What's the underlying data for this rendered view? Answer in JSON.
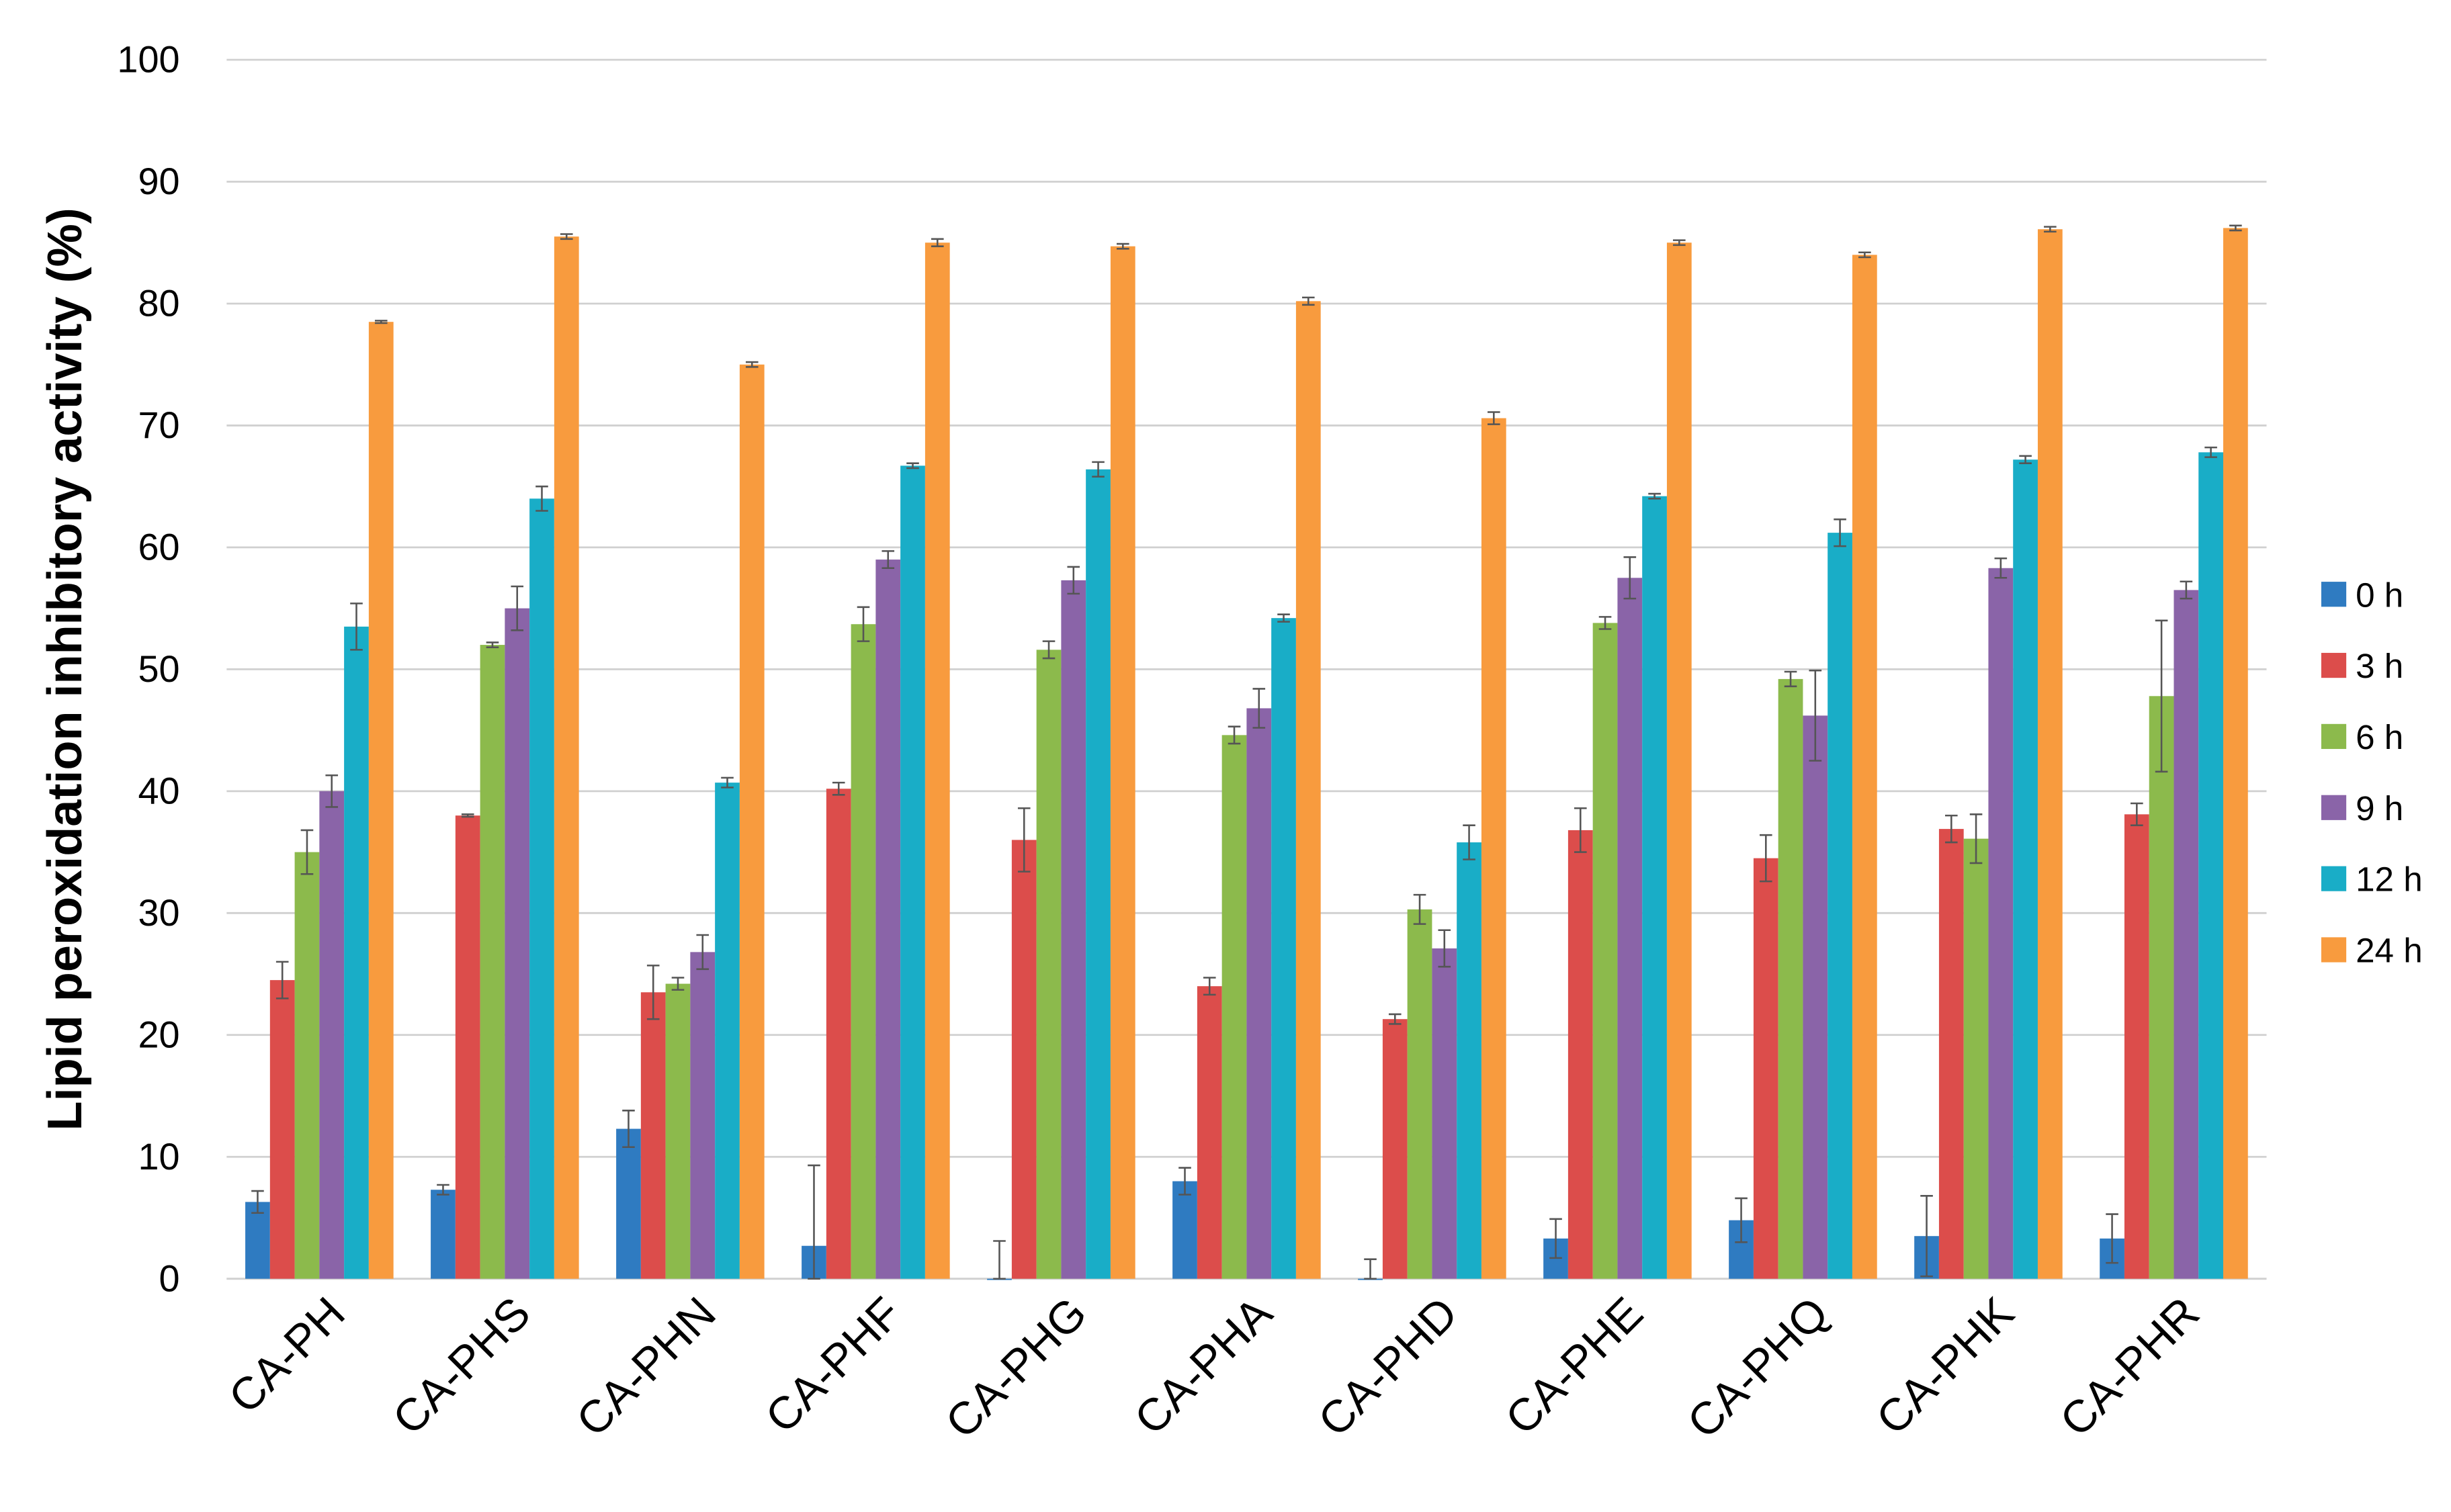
{
  "chart_data": {
    "type": "bar",
    "title": "",
    "xlabel": "",
    "ylabel": "Lipid peroxidation inhibitory activity (%)",
    "ylim": [
      0,
      100
    ],
    "yticks": [
      "0",
      "10",
      "20",
      "30",
      "40",
      "50",
      "60",
      "70",
      "80",
      "90",
      "100"
    ],
    "grid": true,
    "legend_position": "right",
    "categories": [
      "CA-PH",
      "CA-PHS",
      "CA-PHN",
      "CA-PHF",
      "CA-PHG",
      "CA-PHA",
      "CA-PHD",
      "CA-PHE",
      "CA-PHQ",
      "CA-PHK",
      "CA-PHR"
    ],
    "series": [
      {
        "name": "0 h",
        "color": "#2f7bc1",
        "values": [
          6.3,
          7.3,
          12.3,
          2.7,
          0,
          8.0,
          0,
          3.3,
          4.8,
          3.5,
          3.3
        ],
        "errors": [
          0.9,
          0.4,
          1.5,
          6.6,
          3.1,
          1.1,
          1.6,
          1.6,
          1.8,
          3.3,
          2.0
        ]
      },
      {
        "name": "3 h",
        "color": "#dc4d4b",
        "values": [
          24.5,
          38.0,
          23.5,
          40.2,
          36.0,
          24.0,
          21.3,
          36.8,
          34.5,
          36.9,
          38.1
        ],
        "errors": [
          1.5,
          0.1,
          2.2,
          0.5,
          2.6,
          0.7,
          0.4,
          1.8,
          1.9,
          1.1,
          0.9
        ]
      },
      {
        "name": "6 h",
        "color": "#8cba4c",
        "values": [
          35.0,
          52.0,
          24.2,
          53.7,
          51.6,
          44.6,
          30.3,
          53.8,
          49.2,
          36.1,
          47.8
        ],
        "errors": [
          1.8,
          0.2,
          0.5,
          1.4,
          0.7,
          0.7,
          1.2,
          0.5,
          0.6,
          2.0,
          6.2
        ]
      },
      {
        "name": "9 h",
        "color": "#8a64a8",
        "values": [
          40.0,
          55.0,
          26.8,
          59.0,
          57.3,
          46.8,
          27.1,
          57.5,
          46.2,
          58.3,
          56.5
        ],
        "errors": [
          1.3,
          1.8,
          1.4,
          0.7,
          1.1,
          1.6,
          1.5,
          1.7,
          3.7,
          0.8,
          0.7
        ]
      },
      {
        "name": "12 h",
        "color": "#19adc7",
        "values": [
          53.5,
          64.0,
          40.7,
          66.7,
          66.4,
          54.2,
          35.8,
          64.2,
          61.2,
          67.2,
          67.8
        ],
        "errors": [
          1.9,
          1.0,
          0.4,
          0.2,
          0.6,
          0.3,
          1.4,
          0.2,
          1.1,
          0.3,
          0.4
        ]
      },
      {
        "name": "24 h",
        "color": "#f89b3e",
        "values": [
          78.5,
          85.5,
          75.0,
          85.0,
          84.7,
          80.2,
          70.6,
          85.0,
          84.0,
          86.1,
          86.2
        ],
        "errors": [
          0.1,
          0.2,
          0.2,
          0.3,
          0.2,
          0.3,
          0.5,
          0.2,
          0.2,
          0.2,
          0.2
        ]
      }
    ]
  }
}
